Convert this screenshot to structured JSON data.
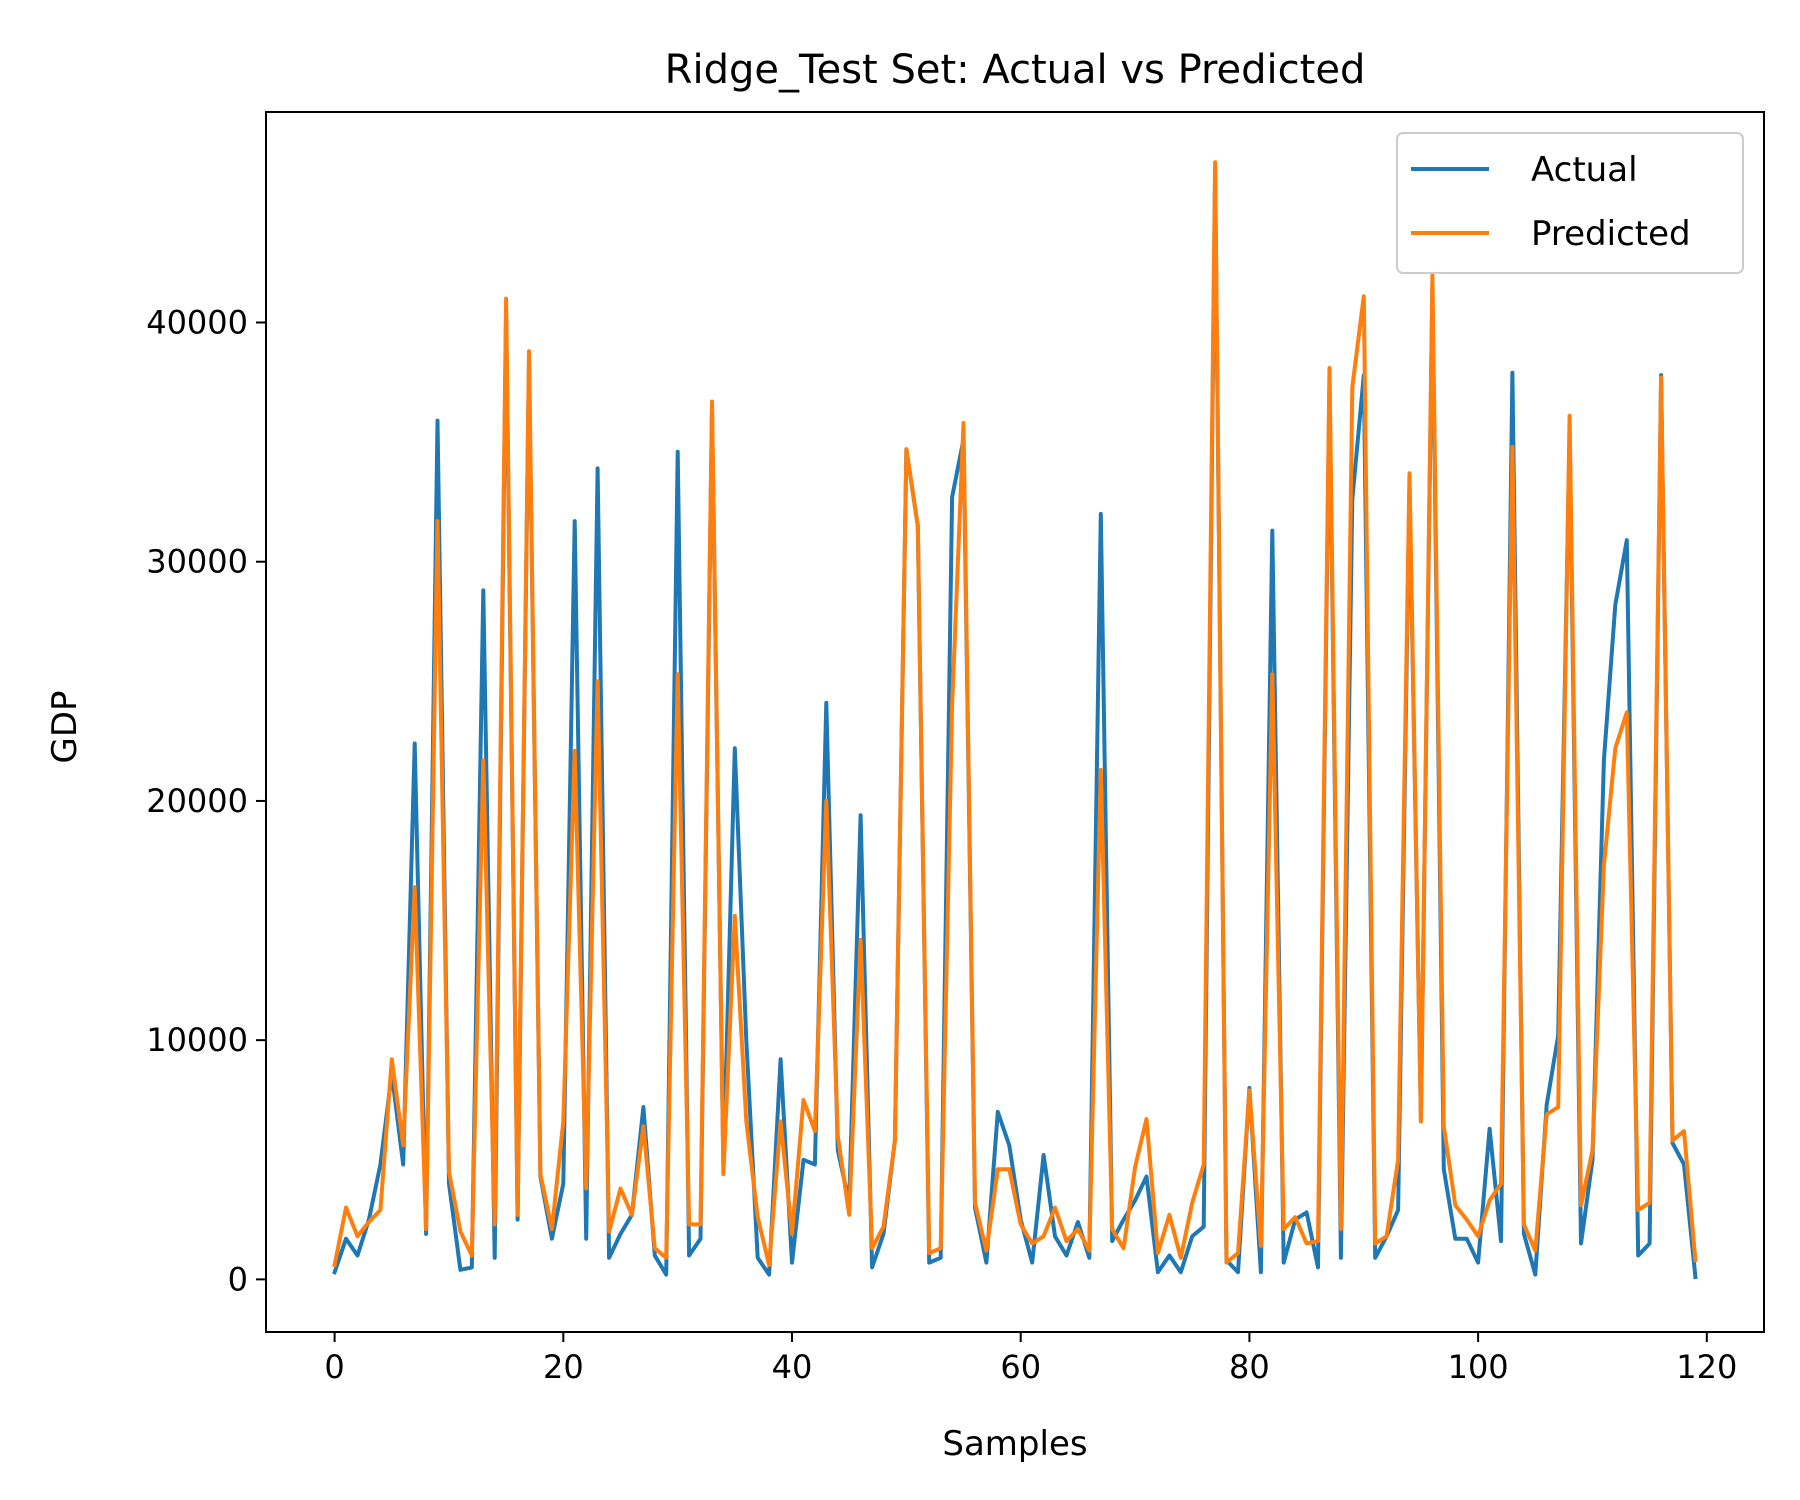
{
  "chart_data": {
    "type": "line",
    "title": "Ridge_Test Set: Actual vs Predicted",
    "xlabel": "Samples",
    "ylabel": "GDP",
    "xlim": [
      -6,
      125
    ],
    "ylim": [
      -2200,
      48800
    ],
    "xticks": [
      0,
      20,
      40,
      60,
      80,
      100,
      120
    ],
    "yticks": [
      0,
      10000,
      20000,
      30000,
      40000
    ],
    "grid": false,
    "legend_position": "top-right",
    "series": [
      {
        "name": "Actual",
        "color": "#1f77b4",
        "values": [
          300,
          1700,
          1000,
          2500,
          4800,
          8600,
          4800,
          22400,
          1900,
          35900,
          4000,
          400,
          500,
          28800,
          900,
          40500,
          2500,
          38500,
          4300,
          1700,
          4000,
          31700,
          1700,
          33900,
          900,
          1900,
          2700,
          7200,
          1000,
          200,
          34600,
          1000,
          1700,
          36400,
          4700,
          22200,
          10000,
          900,
          200,
          9200,
          700,
          5000,
          4800,
          24100,
          5400,
          3200,
          19400,
          500,
          1900,
          5800,
          34700,
          31500,
          700,
          900,
          32700,
          35100,
          3000,
          700,
          7000,
          5600,
          2500,
          700,
          5200,
          1800,
          1000,
          2400,
          900,
          32000,
          1600,
          2500,
          3300,
          4300,
          300,
          1000,
          300,
          1800,
          2200,
          46300,
          800,
          300,
          8000,
          300,
          31300,
          700,
          2500,
          2800,
          500,
          37600,
          900,
          32600,
          37800,
          900,
          1800,
          2900,
          33200,
          6700,
          41400,
          4600,
          1700,
          1700,
          700,
          6300,
          1600,
          37900,
          1900,
          200,
          7300,
          10200,
          35400,
          1500,
          5000,
          21700,
          28200,
          30900,
          1000,
          1500,
          37800,
          5700,
          4800,
          100
        ]
      },
      {
        "name": "Predicted",
        "color": "#ff7f0e",
        "values": [
          600,
          3000,
          1800,
          2400,
          2900,
          9200,
          5600,
          16400,
          2100,
          31700,
          4500,
          2000,
          1000,
          21700,
          2300,
          41000,
          2700,
          38800,
          4400,
          2100,
          6600,
          22100,
          3800,
          25000,
          2000,
          3800,
          2700,
          6400,
          1300,
          900,
          25300,
          2300,
          2300,
          36700,
          4400,
          15200,
          6600,
          2600,
          600,
          6600,
          1900,
          7500,
          6200,
          20000,
          6000,
          2700,
          14200,
          1300,
          2200,
          5800,
          34700,
          31500,
          1100,
          1300,
          24000,
          35800,
          3200,
          1200,
          4600,
          4600,
          2300,
          1500,
          1800,
          3000,
          1600,
          2100,
          1200,
          21300,
          2100,
          1300,
          4700,
          6700,
          1100,
          2700,
          900,
          3200,
          4800,
          46700,
          700,
          1100,
          7900,
          1400,
          25300,
          2100,
          2600,
          1500,
          1600,
          38100,
          2100,
          37300,
          41100,
          1500,
          1800,
          5000,
          33700,
          6600,
          42000,
          6400,
          3100,
          2500,
          1800,
          3300,
          4000,
          34800,
          2300,
          1200,
          6900,
          7200,
          36100,
          3100,
          5400,
          17300,
          22200,
          23700,
          2900,
          3200,
          37700,
          5800,
          6200,
          800
        ]
      }
    ]
  }
}
